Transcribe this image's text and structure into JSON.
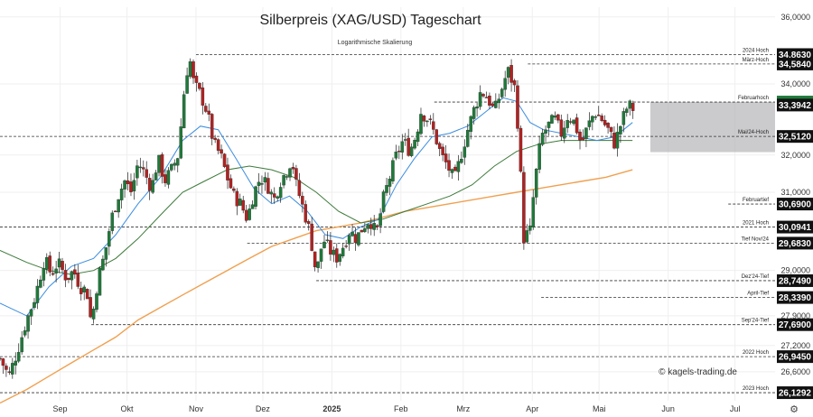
{
  "title": "Silberpreis (XAG/USD) Tageschart",
  "subtitle": "Logarithmische Skalierung",
  "watermark": "© kagels-trading.de",
  "colors": {
    "up": "#1f7a3a",
    "down": "#b22222",
    "ma_fast": "#3b8de0",
    "ma_mid": "#3d7a3a",
    "ma_slow": "#f0a050",
    "badge": "#111111",
    "badge_active": "#1f7a3a",
    "zone": "#b5b5b8"
  },
  "chart_data": {
    "type": "candlestick",
    "scale": "log",
    "ylim": [
      25.95,
      36.3
    ],
    "y_ticks": [
      26.6,
      27.2,
      27.9,
      29.0,
      31.0,
      32.0,
      34.0,
      36.0
    ],
    "y_tick_labels": [
      "26,6000",
      "27,2000",
      "27,9000",
      "29,0000",
      "31,0000",
      "32,0000",
      "34,0000",
      "36,0000"
    ],
    "x_ticks": [
      {
        "label": "Sep",
        "day": 15
      },
      {
        "label": "Okt",
        "day": 45
      },
      {
        "label": "Nov",
        "day": 76
      },
      {
        "label": "Dez",
        "day": 106
      },
      {
        "label": "2025",
        "day": 137,
        "bold": true
      },
      {
        "label": "Feb",
        "day": 168
      },
      {
        "label": "Mrz",
        "day": 196
      },
      {
        "label": "Apr",
        "day": 227
      },
      {
        "label": "Mai",
        "day": 257
      },
      {
        "label": "Jun",
        "day": 288
      },
      {
        "label": "Jul",
        "day": 318
      }
    ],
    "x_range": [
      -12,
      336
    ],
    "levels": [
      {
        "label": "2024 Hoch",
        "value": 34.863,
        "value_label": "34,8630",
        "from": 76
      },
      {
        "label": "März-Hoch",
        "value": 34.584,
        "value_label": "34,5840",
        "from": 225
      },
      {
        "label": "Februarhoch",
        "value": 33.48,
        "value_label": "33,4800",
        "from": 183,
        "active": true
      },
      {
        "label": "",
        "value": 33.3942,
        "value_label": "33,3942",
        "from": 999
      },
      {
        "label": "Mai/24-Hoch",
        "value": 32.512,
        "value_label": "32,5120",
        "from": -12
      },
      {
        "label": "Februartief",
        "value": 30.69,
        "value_label": "30,6900",
        "from": 315
      },
      {
        "label": "2021 Hoch",
        "value": 30.0941,
        "value_label": "30,0941",
        "from": -12
      },
      {
        "label": "Tief Nov/24",
        "value": 29.683,
        "value_label": "29,6830",
        "from": 99
      },
      {
        "label": "Dez'24-Tief",
        "value": 28.749,
        "value_label": "28,7490",
        "from": 130
      },
      {
        "label": "April-Tief",
        "value": 28.339,
        "value_label": "28,3390",
        "from": 231
      },
      {
        "label": "Sep'24-Tief",
        "value": 27.69,
        "value_label": "27,6900",
        "from": 29
      },
      {
        "label": "2022 Hoch",
        "value": 26.945,
        "value_label": "26,9450",
        "from": -12
      },
      {
        "label": "2023 Hoch",
        "value": 26.1292,
        "value_label": "26,1292",
        "from": -12
      }
    ],
    "zone": {
      "from_day": 280,
      "low": 32.08,
      "high": 33.48
    },
    "series": [
      {
        "name": "price",
        "points": [
          [
            -12,
            26.9
          ],
          [
            -8,
            26.5
          ],
          [
            -4,
            27.1
          ],
          [
            0,
            27.8
          ],
          [
            4,
            28.4
          ],
          [
            8,
            29.3
          ],
          [
            11,
            28.9
          ],
          [
            14,
            29.2
          ],
          [
            18,
            28.8
          ],
          [
            21,
            29.0
          ],
          [
            24,
            28.6
          ],
          [
            27,
            28.5
          ],
          [
            29,
            27.7
          ],
          [
            32,
            28.8
          ],
          [
            35,
            29.4
          ],
          [
            38,
            30.3
          ],
          [
            41,
            30.9
          ],
          [
            44,
            31.3
          ],
          [
            47,
            31.0
          ],
          [
            50,
            31.8
          ],
          [
            53,
            31.5
          ],
          [
            56,
            31.1
          ],
          [
            59,
            31.9
          ],
          [
            62,
            31.3
          ],
          [
            65,
            31.6
          ],
          [
            68,
            32.0
          ],
          [
            71,
            34.0
          ],
          [
            73,
            34.8
          ],
          [
            75,
            34.0
          ],
          [
            78,
            33.7
          ],
          [
            81,
            33.2
          ],
          [
            84,
            32.3
          ],
          [
            87,
            32.0
          ],
          [
            90,
            31.4
          ],
          [
            93,
            30.9
          ],
          [
            96,
            30.7
          ],
          [
            99,
            30.3
          ],
          [
            102,
            31.0
          ],
          [
            105,
            31.4
          ],
          [
            108,
            31.2
          ],
          [
            111,
            30.8
          ],
          [
            114,
            31.3
          ],
          [
            117,
            31.6
          ],
          [
            119,
            31.9
          ],
          [
            121,
            31.2
          ],
          [
            124,
            30.6
          ],
          [
            127,
            30.0
          ],
          [
            130,
            28.9
          ],
          [
            133,
            29.8
          ],
          [
            136,
            29.5
          ],
          [
            139,
            29.3
          ],
          [
            142,
            29.6
          ],
          [
            145,
            30.0
          ],
          [
            148,
            29.8
          ],
          [
            151,
            30.1
          ],
          [
            154,
            30.3
          ],
          [
            157,
            29.9
          ],
          [
            160,
            30.8
          ],
          [
            163,
            31.4
          ],
          [
            166,
            32.0
          ],
          [
            169,
            32.4
          ],
          [
            172,
            32.1
          ],
          [
            175,
            32.6
          ],
          [
            177,
            33.2
          ],
          [
            180,
            33.0
          ],
          [
            183,
            32.6
          ],
          [
            186,
            32.0
          ],
          [
            189,
            31.7
          ],
          [
            192,
            31.3
          ],
          [
            195,
            32.0
          ],
          [
            198,
            32.7
          ],
          [
            201,
            33.3
          ],
          [
            204,
            33.8
          ],
          [
            207,
            33.6
          ],
          [
            210,
            33.2
          ],
          [
            213,
            33.8
          ],
          [
            216,
            34.4
          ],
          [
            219,
            33.9
          ],
          [
            221,
            32.5
          ],
          [
            223,
            29.8
          ],
          [
            226,
            30.0
          ],
          [
            228,
            31.2
          ],
          [
            231,
            32.5
          ],
          [
            234,
            32.8
          ],
          [
            237,
            33.0
          ],
          [
            240,
            32.6
          ],
          [
            243,
            33.1
          ],
          [
            246,
            32.9
          ],
          [
            249,
            32.3
          ],
          [
            252,
            32.8
          ],
          [
            255,
            33.2
          ],
          [
            258,
            33.0
          ],
          [
            261,
            32.7
          ],
          [
            264,
            32.3
          ],
          [
            267,
            32.9
          ],
          [
            270,
            33.4
          ],
          [
            273,
            33.25
          ]
        ]
      },
      {
        "name": "candles",
        "values": []
      },
      {
        "name": "ma_fast",
        "points": [
          [
            -12,
            28.2
          ],
          [
            0,
            27.9
          ],
          [
            10,
            28.6
          ],
          [
            20,
            29.1
          ],
          [
            30,
            29.3
          ],
          [
            40,
            29.9
          ],
          [
            50,
            30.7
          ],
          [
            60,
            31.4
          ],
          [
            70,
            32.4
          ],
          [
            78,
            32.8
          ],
          [
            86,
            32.7
          ],
          [
            94,
            31.9
          ],
          [
            102,
            31.1
          ],
          [
            110,
            30.7
          ],
          [
            118,
            30.9
          ],
          [
            126,
            30.5
          ],
          [
            134,
            29.9
          ],
          [
            142,
            29.8
          ],
          [
            150,
            30.1
          ],
          [
            158,
            30.3
          ],
          [
            166,
            31.2
          ],
          [
            174,
            31.9
          ],
          [
            182,
            32.5
          ],
          [
            190,
            32.6
          ],
          [
            198,
            32.8
          ],
          [
            206,
            33.2
          ],
          [
            214,
            33.6
          ],
          [
            220,
            33.5
          ],
          [
            226,
            32.9
          ],
          [
            232,
            32.7
          ],
          [
            240,
            32.6
          ],
          [
            248,
            32.5
          ],
          [
            256,
            32.4
          ],
          [
            264,
            32.5
          ],
          [
            272,
            32.9
          ]
        ]
      },
      {
        "name": "ma_mid",
        "points": [
          [
            -12,
            29.5
          ],
          [
            0,
            29.2
          ],
          [
            10,
            29.0
          ],
          [
            20,
            28.9
          ],
          [
            30,
            29.0
          ],
          [
            40,
            29.3
          ],
          [
            50,
            29.8
          ],
          [
            60,
            30.4
          ],
          [
            70,
            31.0
          ],
          [
            80,
            31.3
          ],
          [
            90,
            31.6
          ],
          [
            100,
            31.7
          ],
          [
            110,
            31.6
          ],
          [
            120,
            31.4
          ],
          [
            130,
            31.0
          ],
          [
            140,
            30.5
          ],
          [
            150,
            30.2
          ],
          [
            160,
            30.3
          ],
          [
            170,
            30.5
          ],
          [
            180,
            30.7
          ],
          [
            190,
            30.9
          ],
          [
            200,
            31.2
          ],
          [
            210,
            31.7
          ],
          [
            220,
            32.1
          ],
          [
            230,
            32.3
          ],
          [
            240,
            32.4
          ],
          [
            250,
            32.4
          ],
          [
            260,
            32.4
          ],
          [
            272,
            32.4
          ]
        ]
      },
      {
        "name": "ma_slow",
        "points": [
          [
            -12,
            25.9
          ],
          [
            0,
            26.2
          ],
          [
            10,
            26.5
          ],
          [
            20,
            26.8
          ],
          [
            30,
            27.1
          ],
          [
            40,
            27.4
          ],
          [
            50,
            27.8
          ],
          [
            60,
            28.1
          ],
          [
            70,
            28.4
          ],
          [
            80,
            28.7
          ],
          [
            90,
            29.0
          ],
          [
            100,
            29.3
          ],
          [
            110,
            29.6
          ],
          [
            120,
            29.8
          ],
          [
            130,
            30.0
          ],
          [
            140,
            30.1
          ],
          [
            150,
            30.2
          ],
          [
            160,
            30.35
          ],
          [
            170,
            30.5
          ],
          [
            180,
            30.6
          ],
          [
            190,
            30.7
          ],
          [
            200,
            30.8
          ],
          [
            210,
            30.9
          ],
          [
            220,
            31.0
          ],
          [
            230,
            31.1
          ],
          [
            240,
            31.2
          ],
          [
            250,
            31.3
          ],
          [
            260,
            31.4
          ],
          [
            272,
            31.6
          ]
        ]
      }
    ]
  }
}
